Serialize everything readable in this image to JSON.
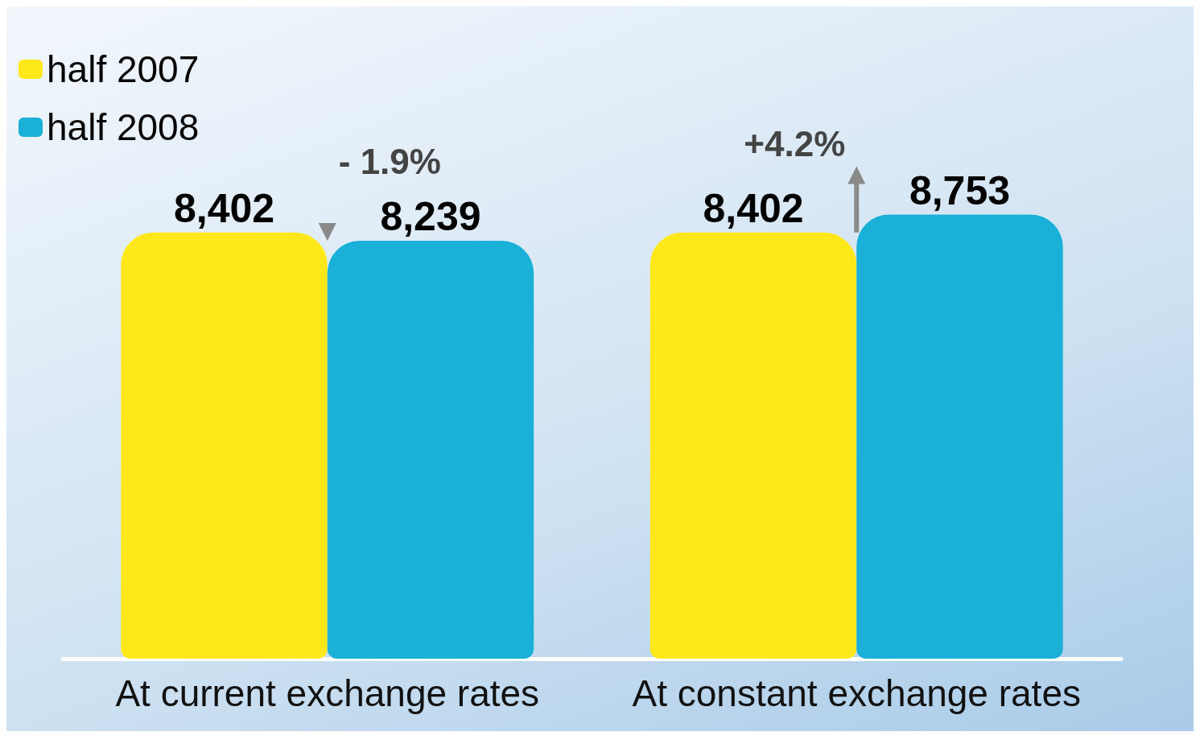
{
  "chart_data": {
    "type": "bar",
    "categories": [
      "At current exchange rates",
      "At constant exchange rates"
    ],
    "series": [
      {
        "name": "half 2007",
        "color": "#ffe81a",
        "values": [
          8402,
          8402
        ],
        "value_labels": [
          "8,402",
          "8,402"
        ]
      },
      {
        "name": "half 2008",
        "color": "#1ab0d8",
        "values": [
          8239,
          8753
        ],
        "value_labels": [
          "8,239",
          "8,753"
        ]
      }
    ],
    "legend": "top left",
    "annotations": [
      "- 1.9%",
      "+4.2%"
    ]
  }
}
